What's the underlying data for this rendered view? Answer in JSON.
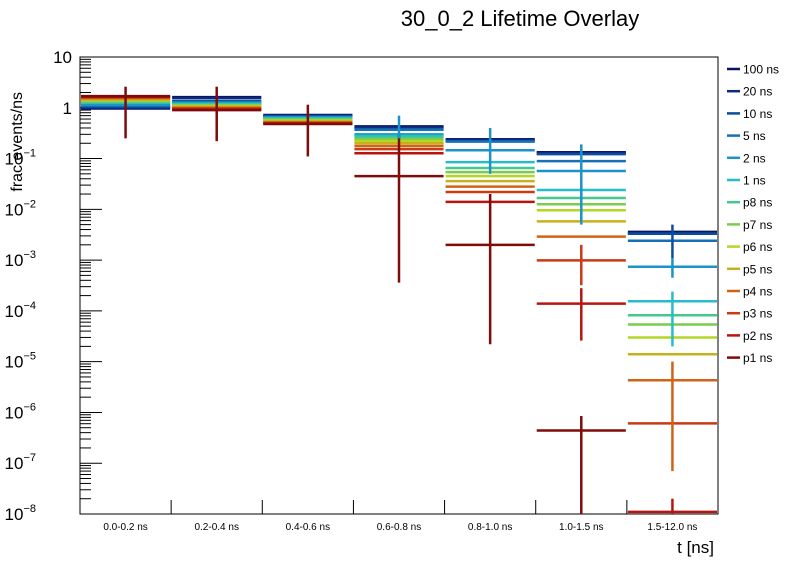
{
  "chart_data": {
    "type": "line",
    "subtype": "histogram-with-error-bars",
    "title": "30_0_2 Lifetime Overlay",
    "xlabel": "t [ns]",
    "ylabel": "frac events/ns",
    "yscale": "log",
    "ylim": [
      1e-08,
      10
    ],
    "y_ticks": [
      {
        "base": "10",
        "exp": ""
      },
      {
        "base": "1",
        "exp": ""
      },
      {
        "base": "10",
        "exp": "−1"
      },
      {
        "base": "10",
        "exp": "−2"
      },
      {
        "base": "10",
        "exp": "−3"
      },
      {
        "base": "10",
        "exp": "−4"
      },
      {
        "base": "10",
        "exp": "−5"
      },
      {
        "base": "10",
        "exp": "−6"
      },
      {
        "base": "10",
        "exp": "−7"
      },
      {
        "base": "10",
        "exp": "−8"
      }
    ],
    "categories": [
      "0.0-0.2 ns",
      "0.2-0.4 ns",
      "0.4-0.6 ns",
      "0.6-0.8 ns",
      "0.8-1.0 ns",
      "1.0-1.5 ns",
      "1.5-12.0 ns"
    ],
    "legend_position": "right",
    "series": [
      {
        "name": "100 ns",
        "color": "#0a1463",
        "values": [
          0.97,
          1.62,
          0.72,
          0.43,
          0.24,
          0.133,
          0.0036
        ]
      },
      {
        "name": "20 ns",
        "color": "#0d2a80",
        "values": [
          1.0,
          1.55,
          0.7,
          0.41,
          0.235,
          0.128,
          0.0034
        ]
      },
      {
        "name": "10 ns",
        "color": "#0b4c9c",
        "values": [
          1.05,
          1.35,
          0.68,
          0.38,
          0.22,
          0.122,
          0.0033
        ]
      },
      {
        "name": "5 ns",
        "color": "#1570b5",
        "values": [
          1.1,
          1.3,
          0.66,
          0.37,
          0.215,
          0.089,
          0.0024
        ]
      },
      {
        "name": "2 ns",
        "color": "#1b93c6",
        "values": [
          1.15,
          1.25,
          0.65,
          0.3,
          0.146,
          0.057,
          0.00074
        ]
      },
      {
        "name": "1 ns",
        "color": "#26bcc8",
        "values": [
          1.25,
          1.2,
          0.62,
          0.28,
          0.085,
          0.024,
          0.000155
        ]
      },
      {
        "name": "p8 ns",
        "color": "#46c78b",
        "values": [
          1.3,
          1.16,
          0.6,
          0.26,
          0.065,
          0.0167,
          8.2e-05
        ]
      },
      {
        "name": "p7 ns",
        "color": "#7acc4d",
        "values": [
          1.35,
          1.12,
          0.58,
          0.24,
          0.054,
          0.0126,
          5.4e-05
        ]
      },
      {
        "name": "p6 ns",
        "color": "#b2d726",
        "values": [
          1.4,
          1.08,
          0.56,
          0.22,
          0.045,
          0.0096,
          3e-05
        ]
      },
      {
        "name": "p5 ns",
        "color": "#c8b01c",
        "values": [
          1.45,
          1.04,
          0.54,
          0.2,
          0.036,
          0.0058,
          1.4e-05
        ]
      },
      {
        "name": "p4 ns",
        "color": "#cf6317",
        "values": [
          1.55,
          1.0,
          0.52,
          0.177,
          0.028,
          0.0029,
          4.3e-06
        ]
      },
      {
        "name": "p3 ns",
        "color": "#c93a15",
        "values": [
          1.6,
          0.96,
          0.5,
          0.153,
          0.022,
          0.00099,
          6.1e-07
        ]
      },
      {
        "name": "p2 ns",
        "color": "#b8140f",
        "values": [
          1.65,
          0.93,
          0.49,
          0.127,
          0.014,
          0.000139,
          1.1e-08
        ]
      },
      {
        "name": "p1 ns",
        "color": "#7f0b0b",
        "values": [
          1.7,
          0.9,
          0.48,
          0.045,
          0.002,
          4.4e-07,
          null
        ]
      }
    ],
    "error_bars": [
      {
        "category": "0.0-0.2 ns",
        "series": "p1 ns",
        "low": 0.25,
        "high": 2.6
      },
      {
        "category": "0.2-0.4 ns",
        "series": "p1 ns",
        "low": 0.22,
        "high": 2.6
      },
      {
        "category": "0.4-0.6 ns",
        "series": "p1 ns",
        "low": 0.11,
        "high": 1.15
      },
      {
        "category": "0.6-0.8 ns",
        "series": "p1 ns",
        "low": 0.00036,
        "high": 0.3
      },
      {
        "category": "0.6-0.8 ns",
        "series": "2 ns",
        "low": 0.25,
        "high": 0.7
      },
      {
        "category": "0.8-1.0 ns",
        "series": "p1 ns",
        "low": 2.2e-05,
        "high": 0.02
      },
      {
        "category": "0.8-1.0 ns",
        "series": "2 ns",
        "low": 0.05,
        "high": 0.4
      },
      {
        "category": "1.0-1.5 ns",
        "series": "p1 ns",
        "low": 1e-08,
        "high": 8.5e-07
      },
      {
        "category": "1.0-1.5 ns",
        "series": "p2 ns",
        "low": 2.6e-05,
        "high": 0.00028
      },
      {
        "category": "1.0-1.5 ns",
        "series": "p3 ns",
        "low": 0.00032,
        "high": 0.002
      },
      {
        "category": "1.0-1.5 ns",
        "series": "2 ns",
        "low": 0.005,
        "high": 0.19
      },
      {
        "category": "1.5-12.0 ns",
        "series": "10 ns",
        "low": 0.0011,
        "high": 0.005
      },
      {
        "category": "1.5-12.0 ns",
        "series": "2 ns",
        "low": 0.00045,
        "high": 0.0011
      },
      {
        "category": "1.5-12.0 ns",
        "series": "1 ns",
        "low": 2e-05,
        "high": 0.00024
      },
      {
        "category": "1.5-12.0 ns",
        "series": "p4 ns",
        "low": 7e-08,
        "high": 1e-05
      },
      {
        "category": "1.5-12.0 ns",
        "series": "p2 ns",
        "low": 1e-08,
        "high": 2e-08
      }
    ]
  }
}
